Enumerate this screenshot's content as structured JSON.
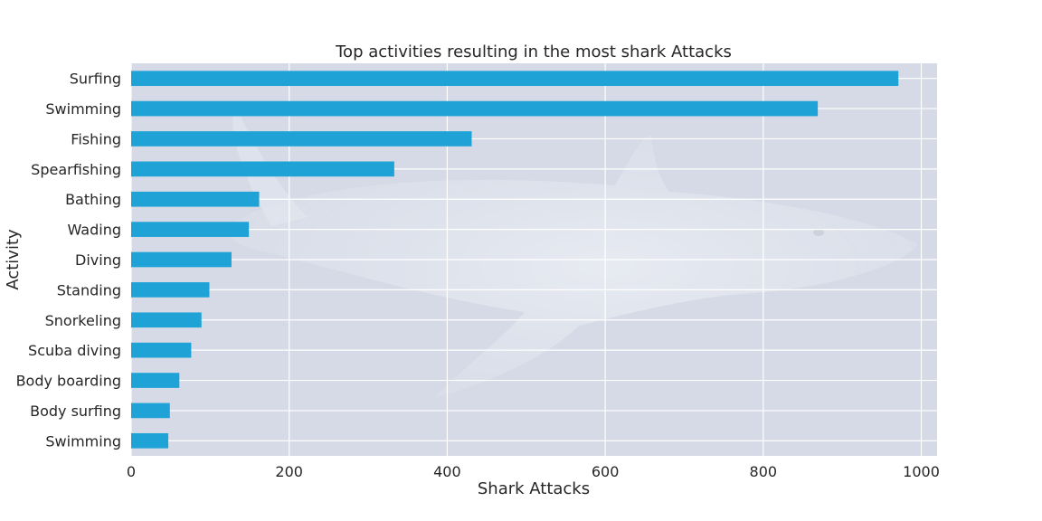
{
  "chart_data": {
    "type": "bar",
    "orientation": "horizontal",
    "title": "Top activities resulting in the most shark Attacks",
    "xlabel": "Shark Attacks",
    "ylabel": "Activity",
    "categories": [
      "Surfing",
      "Swimming",
      "Fishing",
      "Spearfishing",
      "Bathing",
      "Wading",
      "Diving",
      "Standing",
      "Snorkeling",
      "Scuba diving",
      "Body boarding",
      "Body surfing",
      "Swimming "
    ],
    "values": [
      971,
      869,
      431,
      333,
      162,
      149,
      127,
      99,
      89,
      76,
      61,
      49,
      47
    ],
    "xlim": [
      0,
      1020
    ],
    "xticks": [
      0,
      200,
      400,
      600,
      800,
      1000
    ],
    "grid": true,
    "bar_color": "#1fa3d6",
    "background_color": "#d5dae6",
    "background_image": "faded great white shark photo"
  }
}
